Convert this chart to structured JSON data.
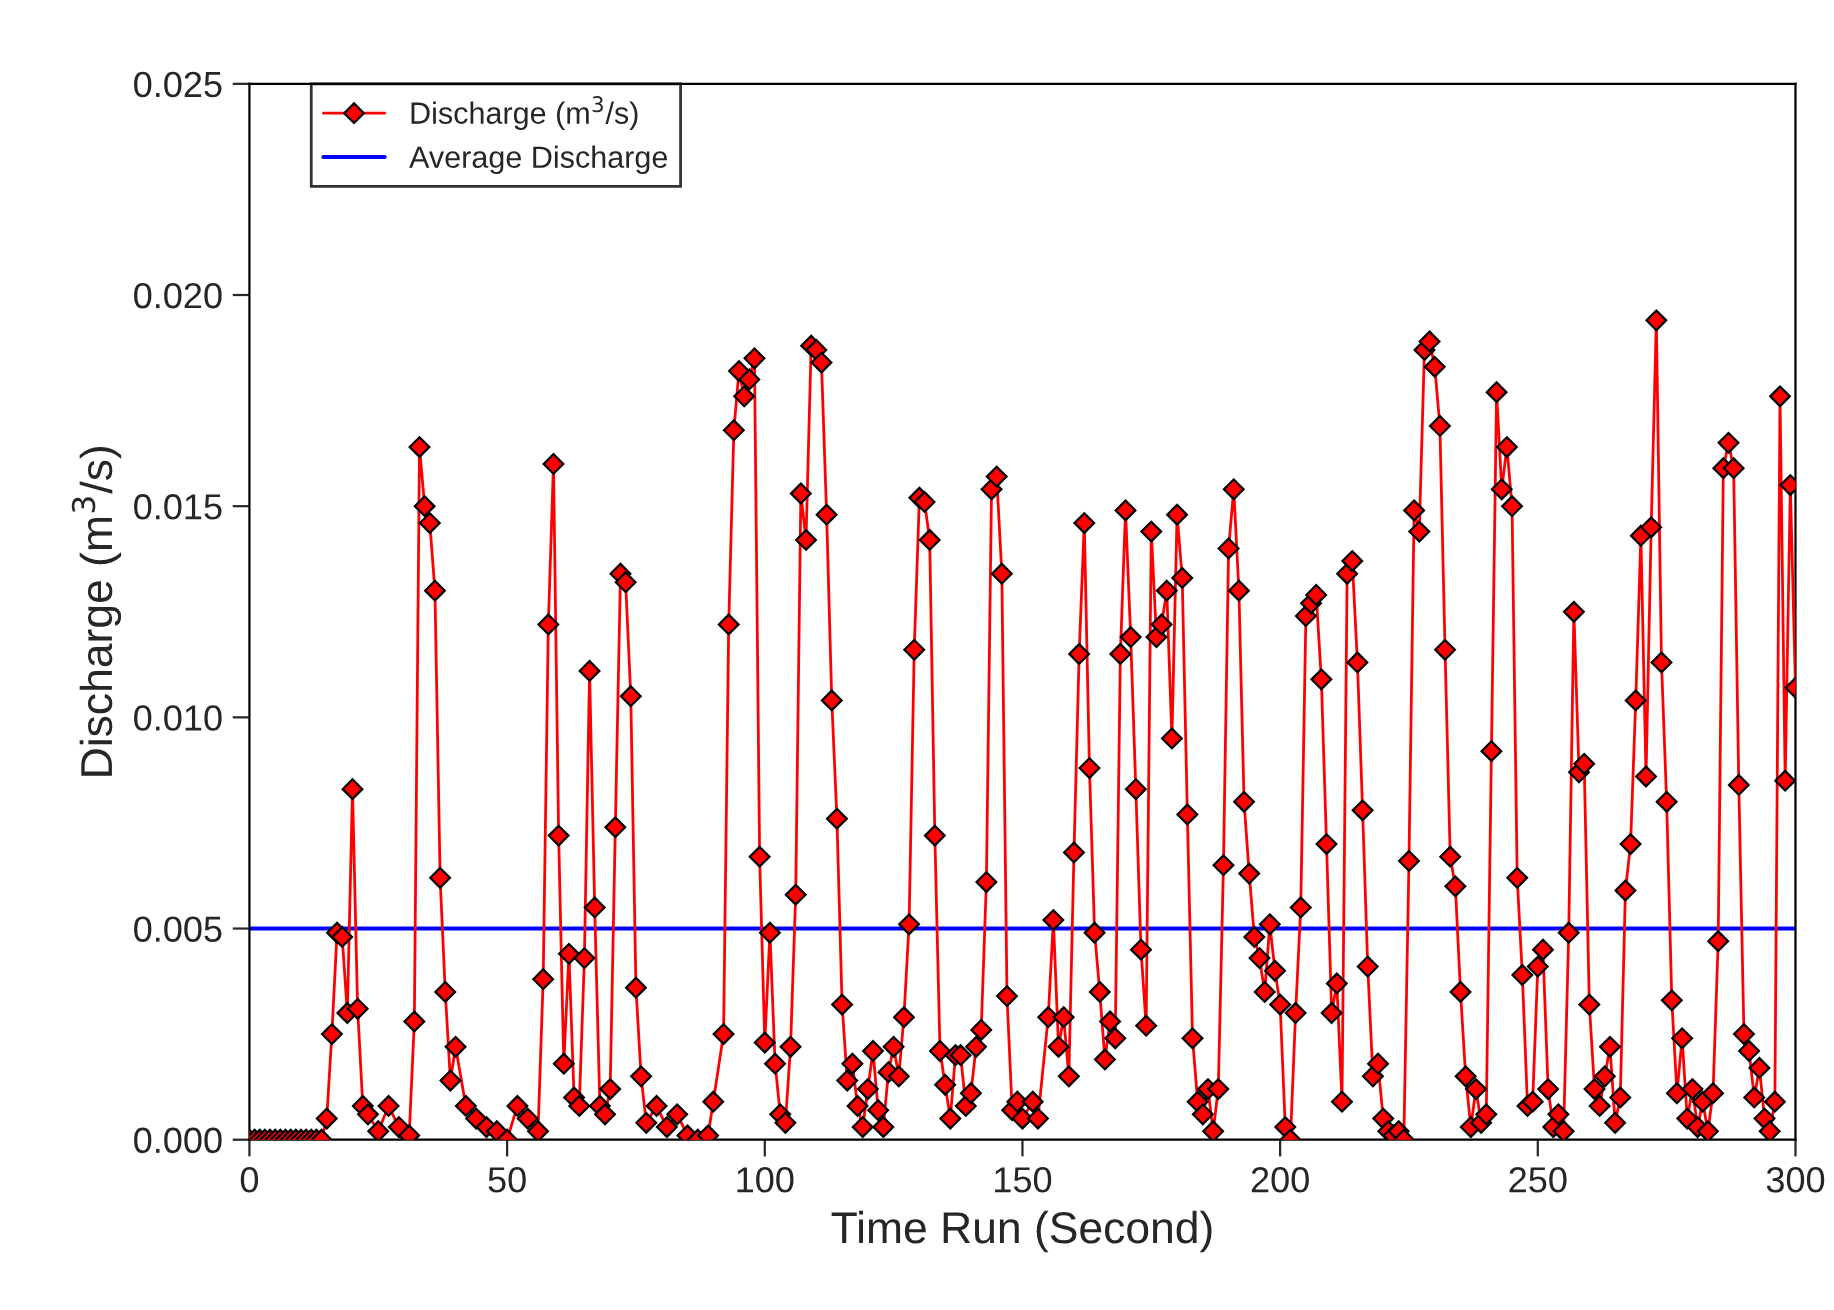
{
  "chart_data": {
    "type": "line",
    "xlabel": "Time Run (Second)",
    "ylabel": "Discharge (m$^{3}$/s)",
    "xlim": [
      0,
      300
    ],
    "xticks": [
      0,
      50,
      100,
      150,
      200,
      250,
      300
    ],
    "ylim": [
      0,
      0.025
    ],
    "yticks": [
      {
        "value": 0,
        "label": "0.000"
      },
      {
        "value": 0.005,
        "label": "0.005"
      },
      {
        "value": 0.01,
        "label": "0.010"
      },
      {
        "value": 0.015,
        "label": "0.015"
      },
      {
        "value": 0.02,
        "label": "0.020"
      },
      {
        "value": 0.025,
        "label": "0.025"
      }
    ],
    "grid": false,
    "legend": "top left",
    "marker": "diamond",
    "line_style": "solid",
    "series": [
      {
        "name": "Discharge (m$^{3}$/s)",
        "color": "#ff0000",
        "x": [
          0,
          1,
          2,
          3,
          4,
          5,
          6,
          7,
          8,
          9,
          10,
          11,
          12,
          13,
          14,
          15,
          16,
          17,
          18,
          19,
          20,
          21,
          22,
          23,
          25,
          27,
          29,
          31,
          32,
          33,
          34,
          35,
          36,
          37,
          38,
          39,
          40,
          42,
          44,
          46,
          48,
          50,
          52,
          54,
          56,
          57,
          58,
          59,
          60,
          61,
          62,
          63,
          64,
          65,
          66,
          67,
          68,
          69,
          70,
          71,
          72,
          73,
          74,
          75,
          76,
          77,
          79,
          81,
          83,
          85,
          87,
          89,
          90,
          92,
          93,
          94,
          95,
          96,
          97,
          98,
          99,
          100,
          101,
          102,
          103,
          104,
          105,
          106,
          107,
          108,
          109,
          110,
          111,
          112,
          113,
          114,
          115,
          116,
          117,
          118,
          119,
          120,
          121,
          122,
          123,
          124,
          125,
          126,
          127,
          128,
          129,
          130,
          131,
          132,
          133,
          134,
          135,
          136,
          137,
          138,
          139,
          140,
          141,
          142,
          143,
          144,
          145,
          146,
          147,
          148,
          149,
          150,
          152,
          153,
          155,
          156,
          157,
          158,
          159,
          160,
          161,
          162,
          163,
          164,
          165,
          166,
          167,
          168,
          169,
          170,
          171,
          172,
          173,
          174,
          175,
          176,
          177,
          178,
          179,
          180,
          181,
          182,
          183,
          184,
          185,
          186,
          187,
          188,
          189,
          190,
          191,
          192,
          193,
          194,
          195,
          196,
          197,
          198,
          199,
          200,
          201,
          202,
          203,
          204,
          205,
          206,
          207,
          208,
          209,
          210,
          211,
          212,
          213,
          214,
          215,
          216,
          217,
          218,
          219,
          220,
          221,
          222,
          223,
          224,
          225,
          226,
          227,
          228,
          229,
          230,
          231,
          232,
          233,
          234,
          235,
          236,
          237,
          238,
          239,
          240,
          241,
          242,
          243,
          244,
          245,
          246,
          247,
          248,
          249,
          250,
          251,
          252,
          253,
          254,
          255,
          256,
          257,
          258,
          259,
          260,
          261,
          262,
          263,
          264,
          265,
          266,
          267,
          268,
          269,
          270,
          271,
          272,
          273,
          274,
          275,
          276,
          277,
          278,
          279,
          280,
          281,
          282,
          283,
          284,
          285,
          286,
          287,
          288,
          289,
          290,
          291,
          292,
          293,
          294,
          295,
          296,
          297,
          298,
          299,
          300
        ],
        "values": [
          0,
          0,
          0,
          0,
          0,
          0,
          0,
          0,
          0,
          0,
          0,
          0,
          0,
          0,
          0,
          0.0005,
          0.0025,
          0.0049,
          0.0048,
          0.003,
          0.0083,
          0.0031,
          0.0008,
          0.0006,
          0.0002,
          0.0008,
          0.0003,
          0.0001,
          0.0028,
          0.0164,
          0.015,
          0.0146,
          0.013,
          0.0062,
          0.0035,
          0.0014,
          0.0022,
          0.0008,
          0.0005,
          0.0003,
          0.0002,
          0.0,
          0.0008,
          0.0005,
          0.0002,
          0.0038,
          0.0122,
          0.016,
          0.0072,
          0.0018,
          0.0044,
          0.001,
          0.0008,
          0.0043,
          0.0111,
          0.0055,
          0.0008,
          0.0006,
          0.0012,
          0.0074,
          0.0134,
          0.0132,
          0.0105,
          0.0036,
          0.0015,
          0.0004,
          0.0008,
          0.0003,
          0.0006,
          0.0001,
          0.0,
          0.0001,
          0.0009,
          0.0025,
          0.0122,
          0.0168,
          0.0182,
          0.0176,
          0.018,
          0.0185,
          0.0067,
          0.0023,
          0.0049,
          0.0018,
          0.0006,
          0.0004,
          0.0022,
          0.0058,
          0.0153,
          0.0142,
          0.0188,
          0.0187,
          0.0184,
          0.0148,
          0.0104,
          0.0076,
          0.0032,
          0.0014,
          0.0018,
          0.0008,
          0.0003,
          0.0012,
          0.0021,
          0.0007,
          0.0003,
          0.0016,
          0.0022,
          0.0015,
          0.0029,
          0.0051,
          0.0116,
          0.0152,
          0.0151,
          0.0142,
          0.0072,
          0.0021,
          0.0013,
          0.0005,
          0.002,
          0.002,
          0.0008,
          0.0011,
          0.0022,
          0.0026,
          0.0061,
          0.0154,
          0.0157,
          0.0134,
          0.0034,
          0.0007,
          0.0009,
          0.0005,
          0.0009,
          0.0005,
          0.0029,
          0.0052,
          0.0022,
          0.0029,
          0.0015,
          0.0068,
          0.0115,
          0.0146,
          0.0088,
          0.0049,
          0.0035,
          0.0019,
          0.0028,
          0.0024,
          0.0115,
          0.0149,
          0.0119,
          0.0083,
          0.0045,
          0.0027,
          0.0144,
          0.0119,
          0.0122,
          0.013,
          0.0095,
          0.0148,
          0.0133,
          0.0077,
          0.0024,
          0.0009,
          0.0006,
          0.0012,
          0.0002,
          0.0012,
          0.0065,
          0.014,
          0.0154,
          0.013,
          0.008,
          0.0063,
          0.0048,
          0.0043,
          0.0035,
          0.0051,
          0.004,
          0.0032,
          0.0003,
          0.0,
          0.003,
          0.0055,
          0.0124,
          0.0127,
          0.0129,
          0.0109,
          0.007,
          0.003,
          0.0037,
          0.0009,
          0.0134,
          0.0137,
          0.0113,
          0.0078,
          0.0041,
          0.0015,
          0.0018,
          0.0005,
          0.0002,
          0.0001,
          0.0002,
          0.0,
          0.0066,
          0.0149,
          0.0144,
          0.0187,
          0.0189,
          0.0183,
          0.0169,
          0.0116,
          0.0067,
          0.006,
          0.0035,
          0.0015,
          0.0003,
          0.0012,
          0.0004,
          0.0006,
          0.0092,
          0.0177,
          0.0154,
          0.0164,
          0.015,
          0.0062,
          0.0039,
          0.0008,
          0.0009,
          0.0041,
          0.0045,
          0.0012,
          0.0003,
          0.0006,
          0.0002,
          0.0049,
          0.0125,
          0.0087,
          0.0089,
          0.0032,
          0.0012,
          0.0008,
          0.0015,
          0.0022,
          0.0004,
          0.001,
          0.0059,
          0.007,
          0.0104,
          0.0143,
          0.0086,
          0.0145,
          0.0194,
          0.0113,
          0.008,
          0.0033,
          0.0011,
          0.0024,
          0.0005,
          0.0012,
          0.0003,
          0.0009,
          0.0002,
          0.0011,
          0.0047,
          0.0159,
          0.0165,
          0.0159,
          0.0084,
          0.0025,
          0.0021,
          0.001,
          0.0017,
          0.0005,
          0.0002,
          0.0009,
          0.0176,
          0.0085,
          0.0155,
          0.0107
        ]
      }
    ],
    "ref_lines": [
      {
        "axis": "y",
        "value": 0.005,
        "label": "Average Discharge",
        "color": "#0000ff",
        "line_style": "solid"
      }
    ]
  }
}
